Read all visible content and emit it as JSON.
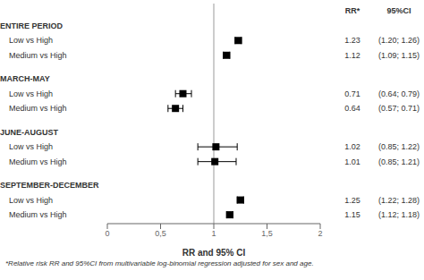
{
  "chart_data": {
    "type": "forest",
    "xlabel": "RR and 95% CI",
    "xlim": [
      0,
      2
    ],
    "xticks": [
      0,
      {
        "value": 0.5,
        "label": "0,5"
      },
      1,
      {
        "value": 1.5,
        "label": "1,5"
      },
      2
    ],
    "reference_x": 1.0,
    "color": "#000000",
    "table_headers": [
      "RR*",
      "95%CI"
    ],
    "groups": [
      {
        "label": "ENTIRE PERIOD",
        "rows": [
          {
            "name": "Low vs High",
            "value": 1.23,
            "ci_low": 1.2,
            "ci_high": 1.26,
            "ci_label": "(1.20; 1.26)"
          },
          {
            "name": "Medium vs High",
            "value": 1.12,
            "ci_low": 1.09,
            "ci_high": 1.15,
            "ci_label": "(1.09; 1.15)"
          }
        ]
      },
      {
        "label": "MARCH-MAY",
        "rows": [
          {
            "name": "Low vs High",
            "value": 0.71,
            "ci_low": 0.64,
            "ci_high": 0.79,
            "ci_label": "(0.64; 0.79)"
          },
          {
            "name": "Medium vs High",
            "value": 0.64,
            "ci_low": 0.57,
            "ci_high": 0.71,
            "ci_label": "(0.57; 0.71)"
          }
        ]
      },
      {
        "label": "JUNE-AUGUST",
        "rows": [
          {
            "name": "Low vs High",
            "value": 1.02,
            "ci_low": 0.85,
            "ci_high": 1.22,
            "ci_label": "(0.85; 1.22)"
          },
          {
            "name": "Medium vs High",
            "value": 1.01,
            "ci_low": 0.85,
            "ci_high": 1.21,
            "ci_label": "(0.85; 1.21)"
          }
        ]
      },
      {
        "label": "SEPTEMBER-DECEMBER",
        "rows": [
          {
            "name": "Low vs High",
            "value": 1.25,
            "ci_low": 1.22,
            "ci_high": 1.28,
            "ci_label": "(1.22; 1.28)"
          },
          {
            "name": "Medium vs High",
            "value": 1.15,
            "ci_low": 1.12,
            "ci_high": 1.18,
            "ci_label": "(1.12; 1.18)"
          }
        ]
      }
    ],
    "footnote": "*Relative risk RR and 95%CI from multivariable log-binomial regression adjusted for sex and age."
  }
}
